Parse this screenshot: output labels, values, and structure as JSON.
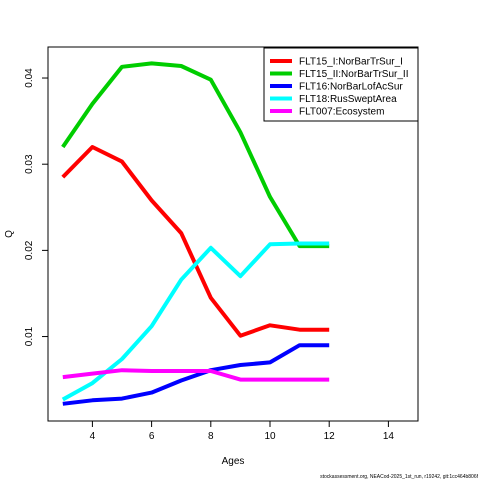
{
  "chart_data": {
    "type": "line",
    "xlabel": "Ages",
    "ylabel": "Q",
    "xlim": [
      2.5,
      15
    ],
    "ylim": [
      0.0002,
      0.0436
    ],
    "xticks": [
      4,
      6,
      8,
      10,
      12,
      14
    ],
    "yticks": [
      0.01,
      0.02,
      0.03,
      0.04
    ],
    "xtick_labels": [
      "4",
      "6",
      "8",
      "10",
      "12",
      "14"
    ],
    "ytick_labels": [
      "0.01",
      "0.02",
      "0.03",
      "0.04"
    ],
    "legend_position": "top-right",
    "grid": false,
    "series": [
      {
        "name": "FLT15_I:NorBarTrSur_I",
        "color": "#ff0000",
        "x": [
          3,
          4,
          5,
          6,
          7,
          8,
          9,
          10,
          11,
          12
        ],
        "y": [
          0.0285,
          0.032,
          0.0303,
          0.0258,
          0.022,
          0.0145,
          0.0101,
          0.0113,
          0.0108,
          0.0108
        ]
      },
      {
        "name": "FLT15_II:NorBarTrSur_II",
        "color": "#00cd00",
        "x": [
          3,
          4,
          5,
          6,
          7,
          8,
          9,
          10,
          11,
          12
        ],
        "y": [
          0.032,
          0.037,
          0.0413,
          0.0417,
          0.0414,
          0.0398,
          0.0337,
          0.0262,
          0.0205,
          0.0205
        ]
      },
      {
        "name": "FLT16:NorBarLofAcSur",
        "color": "#0000ff",
        "x": [
          3,
          4,
          5,
          6,
          7,
          8,
          9,
          10,
          11,
          12
        ],
        "y": [
          0.0022,
          0.0026,
          0.0028,
          0.0035,
          0.0049,
          0.0061,
          0.0067,
          0.007,
          0.009,
          0.009
        ]
      },
      {
        "name": "FLT18:RusSweptArea",
        "color": "#00ffff",
        "x": [
          3,
          4,
          5,
          6,
          7,
          8,
          9,
          10,
          11,
          12
        ],
        "y": [
          0.0027,
          0.0046,
          0.0074,
          0.0112,
          0.0166,
          0.0203,
          0.017,
          0.0207,
          0.0208,
          0.0208
        ]
      },
      {
        "name": "FLT007:Ecosystem",
        "color": "#ff00ff",
        "x": [
          3,
          4,
          5,
          6,
          7,
          8,
          9,
          10,
          11,
          12
        ],
        "y": [
          0.0053,
          0.0057,
          0.0061,
          0.006,
          0.006,
          0.006,
          0.005,
          0.005,
          0.005,
          0.005
        ]
      }
    ]
  },
  "footnote": "stockassessment.org, NEACod-2025_1st_run, r19242, git:1cc464b806f"
}
